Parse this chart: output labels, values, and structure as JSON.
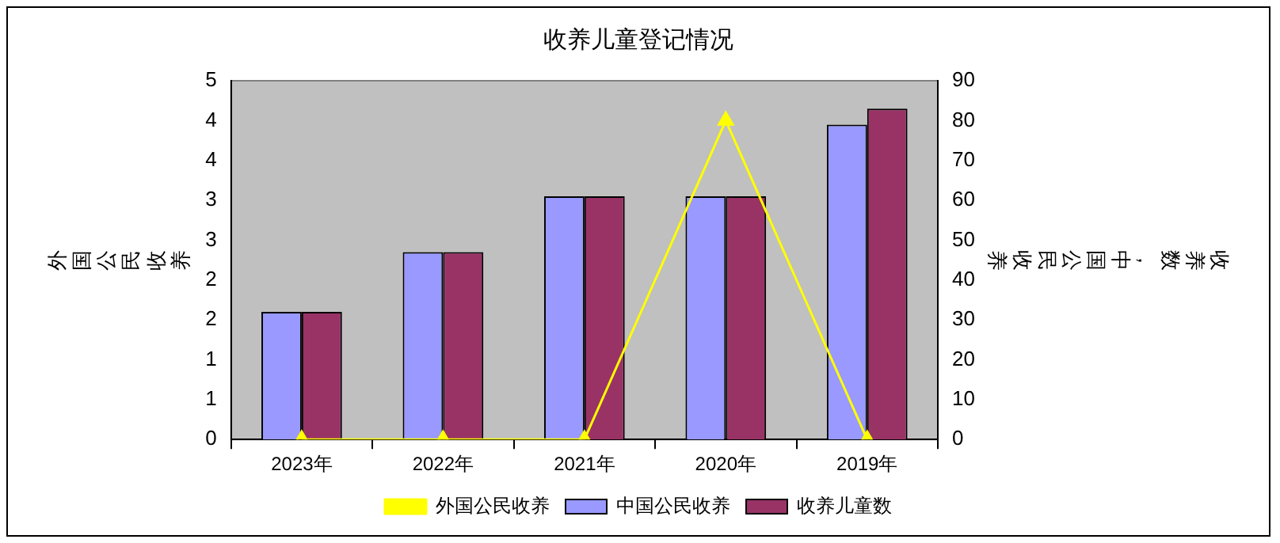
{
  "chart_data": {
    "type": "bar",
    "title": "收养儿童登记情况",
    "ylabel": "外国公民收养",
    "y2label": "收养数，中国公民收养",
    "categories": [
      "2023年",
      "2022年",
      "2021年",
      "2020年",
      "2019年"
    ],
    "series": [
      {
        "name": "外国公民收养",
        "type": "line",
        "color": "#ffff00",
        "values": [
          0,
          0,
          0,
          4,
          0
        ],
        "marker": "triangle"
      },
      {
        "name": "中国公民收养",
        "color": "#9999ff",
        "values": [
          32,
          47,
          61,
          61,
          79
        ],
        "axis": "y2"
      },
      {
        "name": "收养儿童数",
        "color": "#993366",
        "values": [
          32,
          47,
          61,
          61,
          83
        ],
        "axis": "y2"
      }
    ],
    "ylim": [
      0,
      4.5
    ],
    "yticks": [
      0,
      {
        "value": 0.5,
        "label": "1"
      },
      1,
      {
        "value": 1.5,
        "label": "2"
      },
      2,
      {
        "value": 2.5,
        "label": "3"
      },
      3,
      {
        "value": 3.5,
        "label": "4"
      },
      4,
      {
        "value": 4.5,
        "label": "5"
      }
    ],
    "y2lim": [
      0,
      90
    ],
    "y2ticks": [
      0,
      10,
      20,
      30,
      40,
      50,
      60,
      70,
      80,
      90
    ],
    "grid": false,
    "legend": "bottom"
  }
}
